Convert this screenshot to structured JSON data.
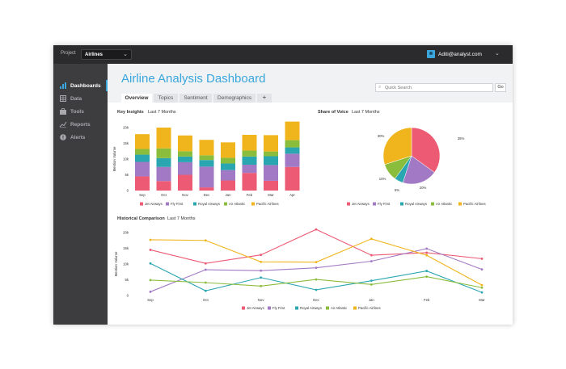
{
  "topbar": {
    "project_label": "Project",
    "project_value": "Airlines",
    "user_email": "Aditi@analyst.com"
  },
  "sidebar": {
    "items": [
      {
        "label": "Dashboards",
        "icon": "bar-chart-icon",
        "active": true
      },
      {
        "label": "Data",
        "icon": "table-icon",
        "active": false
      },
      {
        "label": "Tools",
        "icon": "briefcase-icon",
        "active": false
      },
      {
        "label": "Reports",
        "icon": "line-chart-icon",
        "active": false
      },
      {
        "label": "Alerts",
        "icon": "alert-icon",
        "active": false
      }
    ]
  },
  "header": {
    "title": "Airline Analysis Dashboard",
    "search_placeholder": "Quick Search",
    "go_label": "Go",
    "tabs": [
      "Overview",
      "Topics",
      "Sentiment",
      "Demographics"
    ],
    "add_tab": "+"
  },
  "panels": {
    "key_insights": {
      "title": "Key Insights",
      "range": "Last 7 Months"
    },
    "share_of_voice": {
      "title": "Share of Voice",
      "range": "Last 7 Months"
    },
    "historical": {
      "title": "Historical Comparison",
      "range": "Last 7 Months"
    }
  },
  "colors": {
    "Jet Airways": "#ec5a73",
    "Fly First": "#a279c4",
    "Royal Airways": "#2aa6b0",
    "Air Atlantic": "#8bbd3d",
    "Pacific Airlines": "#f0b51c",
    "accent": "#3aa6dc"
  },
  "chart_data": [
    {
      "id": "key-insights",
      "type": "bar",
      "stacked": true,
      "categories": [
        "Sep",
        "Oct",
        "Nov",
        "Dec",
        "Jan",
        "Feb",
        "Mar",
        "Apr"
      ],
      "ylabel": "Mention Volume",
      "ylim": [
        0,
        20000
      ],
      "yticks": [
        "0",
        "5k",
        "10k",
        "15k",
        "20k"
      ],
      "series": [
        {
          "name": "Jet Airways",
          "values": [
            4500,
            3000,
            5000,
            1000,
            3200,
            5600,
            3100,
            7500
          ]
        },
        {
          "name": "Fly First",
          "values": [
            4600,
            4500,
            4000,
            6600,
            3300,
            2600,
            5000,
            4200
          ]
        },
        {
          "name": "Royal Airways",
          "values": [
            2300,
            2800,
            1800,
            2100,
            2100,
            2600,
            2800,
            2000
          ]
        },
        {
          "name": "Air Atlantic",
          "values": [
            1800,
            3100,
            1700,
            1500,
            1800,
            1900,
            1500,
            2300
          ]
        },
        {
          "name": "Pacific Airlines",
          "values": [
            4700,
            6600,
            5000,
            4900,
            4900,
            5000,
            5200,
            5900
          ]
        }
      ],
      "legend": "bottom"
    },
    {
      "id": "share-of-voice",
      "type": "pie",
      "slices": [
        {
          "name": "Jet Airways",
          "value": 35,
          "label": "35%"
        },
        {
          "name": "Fly First",
          "value": 20,
          "label": "20%"
        },
        {
          "name": "Royal Airways",
          "value": 5,
          "label": "5%"
        },
        {
          "name": "Air Atlantic",
          "value": 10,
          "label": "10%"
        },
        {
          "name": "Pacific Airlines",
          "value": 30,
          "label": "30%"
        }
      ],
      "legend": "bottom"
    },
    {
      "id": "historical-comparison",
      "type": "line",
      "x": [
        "Sep",
        "Oct",
        "Nov",
        "Dec",
        "Jan",
        "Feb",
        "Mar"
      ],
      "ylabel": "Mention Volume",
      "ylim": [
        0,
        20000
      ],
      "yticks": [
        "0",
        "5k",
        "10k",
        "15k",
        "20k"
      ],
      "series": [
        {
          "name": "Jet Airways",
          "values": [
            14500,
            10200,
            12900,
            21000,
            12800,
            13600,
            11700
          ]
        },
        {
          "name": "Fly First",
          "values": [
            1200,
            8200,
            7900,
            8800,
            10900,
            14900,
            8300
          ]
        },
        {
          "name": "Royal Airways",
          "values": [
            10200,
            1500,
            5700,
            1800,
            4700,
            7800,
            1000
          ]
        },
        {
          "name": "Air Atlantic",
          "values": [
            4900,
            4100,
            3000,
            5100,
            3500,
            6000,
            2500
          ]
        },
        {
          "name": "Pacific Airlines",
          "values": [
            17700,
            17500,
            10700,
            10600,
            18000,
            12800,
            3300
          ]
        }
      ],
      "legend": "bottom"
    }
  ]
}
